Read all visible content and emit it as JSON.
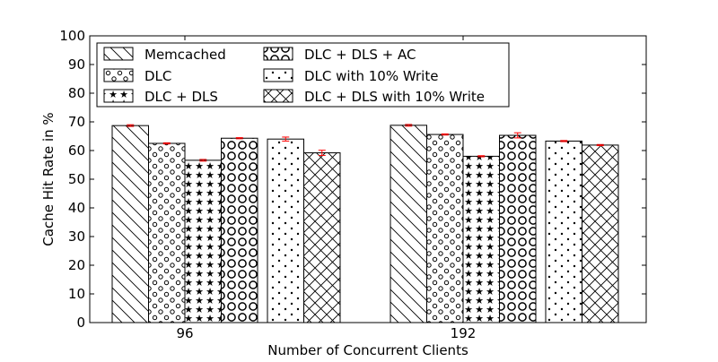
{
  "chart_data": {
    "type": "bar",
    "xlabel": "Number of Concurrent Clients",
    "ylabel": "Cache Hit Rate in %",
    "ylim": [
      0,
      100
    ],
    "yticks": [
      0,
      10,
      20,
      30,
      40,
      50,
      60,
      70,
      80,
      90,
      100
    ],
    "categories": [
      "96",
      "192"
    ],
    "legend_position": "top-left",
    "grid": false,
    "error_bar_color": "#ff0000",
    "series": [
      {
        "name": "Memcached",
        "hatch": "diagonal",
        "values": [
          68.7,
          68.8
        ],
        "errors": [
          0.3,
          0.3
        ]
      },
      {
        "name": "DLC",
        "hatch": "small-circles",
        "values": [
          62.5,
          65.6
        ],
        "errors": [
          0.2,
          0.2
        ]
      },
      {
        "name": "DLC + DLS",
        "hatch": "stars",
        "values": [
          56.6,
          58.0
        ],
        "errors": [
          0.3,
          0.2
        ]
      },
      {
        "name": "DLC + DLS + AC",
        "hatch": "large-circles",
        "values": [
          64.3,
          65.3
        ],
        "errors": [
          0.2,
          0.9
        ]
      },
      {
        "name": "DLC with 10% Write",
        "hatch": "dots",
        "values": [
          64.0,
          63.3
        ],
        "errors": [
          0.7,
          0.2
        ]
      },
      {
        "name": "DLC + DLS with 10% Write",
        "hatch": "crosshatch",
        "values": [
          59.2,
          61.9
        ],
        "errors": [
          0.9,
          0.2
        ]
      }
    ]
  }
}
